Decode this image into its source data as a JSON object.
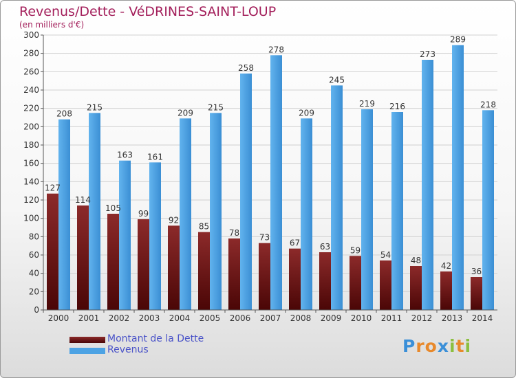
{
  "header": {
    "title": "Revenus/Dette - VéDRINES-SAINT-LOUP",
    "subtitle": "(en milliers d'€)"
  },
  "chart_data": {
    "type": "bar",
    "title": "Revenus/Dette - VéDRINES-SAINT-LOUP",
    "subtitle": "(en milliers d'€)",
    "xlabel": "",
    "ylabel": "",
    "categories": [
      "2000",
      "2001",
      "2002",
      "2003",
      "2004",
      "2005",
      "2006",
      "2007",
      "2008",
      "2009",
      "2010",
      "2011",
      "2012",
      "2013",
      "2014"
    ],
    "series": [
      {
        "name": "Montant de la Dette",
        "color": "#7a1a1a",
        "values": [
          127,
          114,
          105,
          99,
          92,
          85,
          78,
          73,
          67,
          63,
          59,
          54,
          48,
          42,
          36
        ]
      },
      {
        "name": "Revenus",
        "color": "#4da3e4",
        "values": [
          208,
          215,
          163,
          161,
          209,
          215,
          258,
          278,
          209,
          245,
          219,
          216,
          273,
          289,
          218
        ]
      }
    ],
    "ylim": [
      0,
      300
    ],
    "yticks": [
      0,
      20,
      40,
      60,
      80,
      100,
      120,
      140,
      160,
      180,
      200,
      220,
      240,
      260,
      280,
      300
    ],
    "grid": true,
    "legend_position": "bottom-left"
  },
  "legend": {
    "items": [
      {
        "label": "Montant de la Dette",
        "color": "#6b1010"
      },
      {
        "label": "Revenus",
        "color": "#4da3e4"
      }
    ]
  },
  "logo": {
    "letters": [
      "P",
      "r",
      "o",
      "x",
      "i",
      "t",
      "i"
    ],
    "colors": [
      "#3a8fd8",
      "#e8892b",
      "#e8892b",
      "#3a8fd8",
      "#8cbf3f",
      "#e8892b",
      "#8cbf3f"
    ]
  }
}
